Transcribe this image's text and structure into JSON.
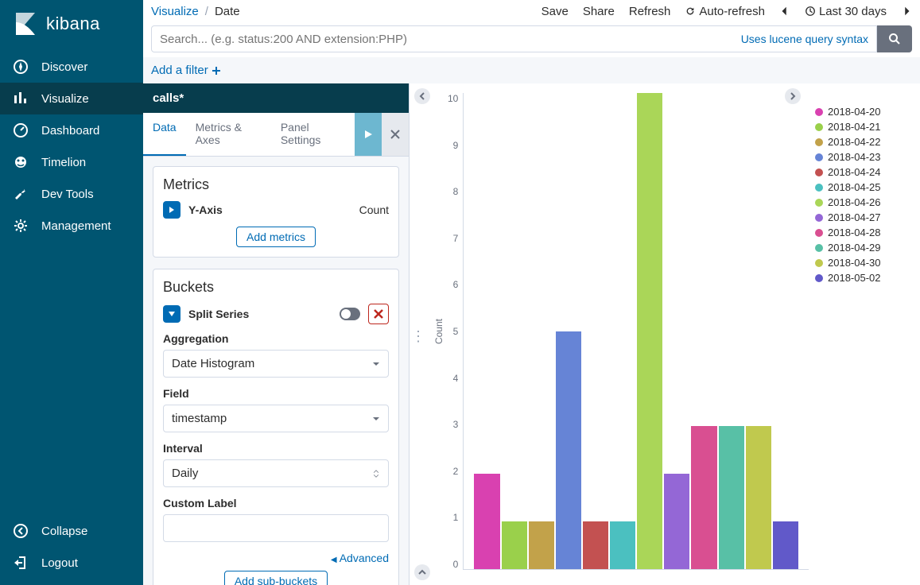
{
  "brand": "kibana",
  "sidebar": {
    "items": [
      {
        "label": "Discover",
        "icon": "compass"
      },
      {
        "label": "Visualize",
        "icon": "chart",
        "active": true
      },
      {
        "label": "Dashboard",
        "icon": "dashboard"
      },
      {
        "label": "Timelion",
        "icon": "timelion"
      },
      {
        "label": "Dev Tools",
        "icon": "wrench"
      },
      {
        "label": "Management",
        "icon": "gear"
      }
    ],
    "bottom": [
      {
        "label": "Collapse",
        "icon": "collapse"
      },
      {
        "label": "Logout",
        "icon": "logout"
      }
    ]
  },
  "breadcrumb": {
    "section": "Visualize",
    "page": "Date"
  },
  "top_actions": {
    "save": "Save",
    "share": "Share",
    "refresh": "Refresh",
    "autorefresh": "Auto-refresh",
    "timerange": "Last 30 days"
  },
  "search": {
    "placeholder": "Search... (e.g. status:200 AND extension:PHP)",
    "lucene": "Uses lucene query syntax"
  },
  "filter": {
    "add": "Add a filter"
  },
  "index_pattern": "calls*",
  "config_tabs": [
    "Data",
    "Metrics & Axes",
    "Panel Settings"
  ],
  "metrics": {
    "title": "Metrics",
    "yaxis_label": "Y-Axis",
    "yaxis_agg": "Count",
    "add_button": "Add metrics"
  },
  "buckets": {
    "title": "Buckets",
    "split_label": "Split Series",
    "aggregation_label": "Aggregation",
    "aggregation_value": "Date Histogram",
    "field_label": "Field",
    "field_value": "timestamp",
    "interval_label": "Interval",
    "interval_value": "Daily",
    "custom_label_label": "Custom Label",
    "custom_label_value": "",
    "advanced": "Advanced",
    "add_sub": "Add sub-buckets"
  },
  "chart": {
    "type": "bar",
    "ylabel": "Count",
    "ylim": [
      0,
      10
    ],
    "ytick_step": 1,
    "background_color": "#ffffff",
    "axis_color": "#d3dae6",
    "bars": [
      {
        "value": 2,
        "color": "#d941b0"
      },
      {
        "value": 1,
        "color": "#9ad04b"
      },
      {
        "value": 1,
        "color": "#c2a24a"
      },
      {
        "value": 5,
        "color": "#6684d6"
      },
      {
        "value": 1,
        "color": "#c35151"
      },
      {
        "value": 1,
        "color": "#4bc0c0"
      },
      {
        "value": 10,
        "color": "#aad658"
      },
      {
        "value": 2,
        "color": "#9467d6"
      },
      {
        "value": 3,
        "color": "#d94f91"
      },
      {
        "value": 3,
        "color": "#58c0a6"
      },
      {
        "value": 3,
        "color": "#c0c94e"
      },
      {
        "value": 1,
        "color": "#6159c9"
      }
    ],
    "legend": [
      {
        "label": "2018-04-20",
        "color": "#d941b0"
      },
      {
        "label": "2018-04-21",
        "color": "#9ad04b"
      },
      {
        "label": "2018-04-22",
        "color": "#c2a24a"
      },
      {
        "label": "2018-04-23",
        "color": "#6684d6"
      },
      {
        "label": "2018-04-24",
        "color": "#c35151"
      },
      {
        "label": "2018-04-25",
        "color": "#4bc0c0"
      },
      {
        "label": "2018-04-26",
        "color": "#aad658"
      },
      {
        "label": "2018-04-27",
        "color": "#9467d6"
      },
      {
        "label": "2018-04-28",
        "color": "#d94f91"
      },
      {
        "label": "2018-04-29",
        "color": "#58c0a6"
      },
      {
        "label": "2018-04-30",
        "color": "#c0c94e"
      },
      {
        "label": "2018-05-02",
        "color": "#6159c9"
      }
    ]
  }
}
